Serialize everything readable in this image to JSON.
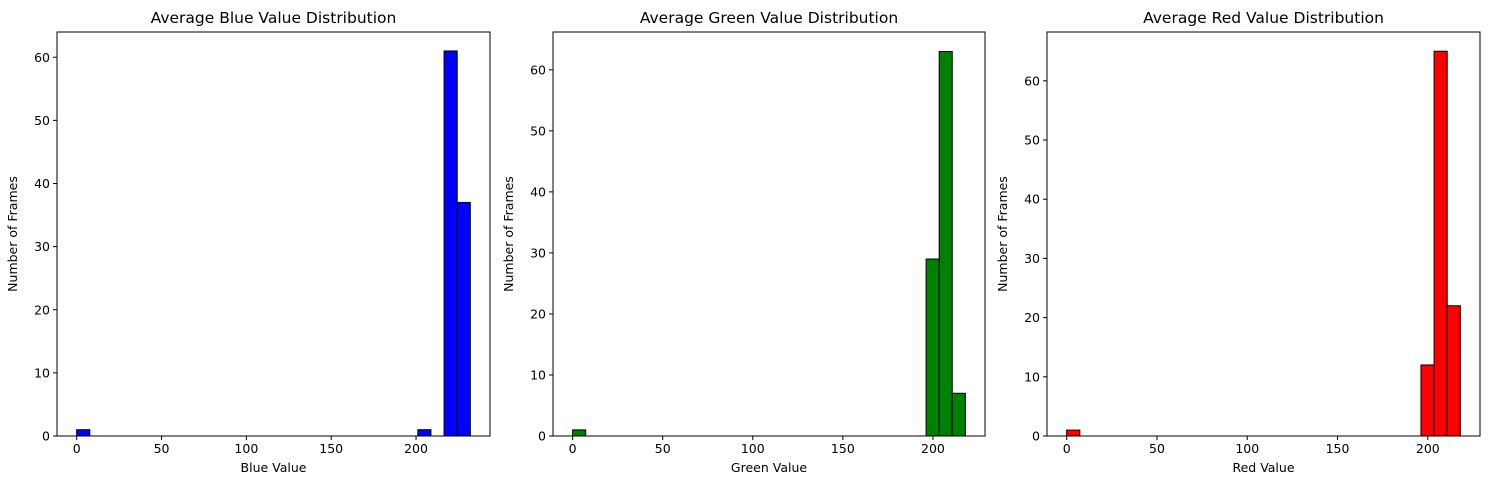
{
  "chart_data": [
    {
      "type": "bar",
      "title": "Average Blue Value Distribution",
      "xlabel": "Blue Value",
      "ylabel": "Number of Frames",
      "color": "#0000ff",
      "edge_color": "#000000",
      "xlim": [
        -11.6,
        243.6
      ],
      "ylim": [
        0,
        64
      ],
      "xticks": [
        0,
        50,
        100,
        150,
        200
      ],
      "yticks": [
        0,
        10,
        20,
        30,
        40,
        50,
        60
      ],
      "bins": [
        {
          "x0": 0,
          "x1": 7.73,
          "count": 1
        },
        {
          "x0": 7.73,
          "x1": 15.47,
          "count": 0
        },
        {
          "x0": 15.47,
          "x1": 23.2,
          "count": 0
        },
        {
          "x0": 23.2,
          "x1": 30.93,
          "count": 0
        },
        {
          "x0": 30.93,
          "x1": 38.67,
          "count": 0
        },
        {
          "x0": 38.67,
          "x1": 46.4,
          "count": 0
        },
        {
          "x0": 46.4,
          "x1": 54.13,
          "count": 0
        },
        {
          "x0": 54.13,
          "x1": 61.87,
          "count": 0
        },
        {
          "x0": 61.87,
          "x1": 69.6,
          "count": 0
        },
        {
          "x0": 69.6,
          "x1": 77.33,
          "count": 0
        },
        {
          "x0": 77.33,
          "x1": 85.07,
          "count": 0
        },
        {
          "x0": 85.07,
          "x1": 92.8,
          "count": 0
        },
        {
          "x0": 92.8,
          "x1": 100.53,
          "count": 0
        },
        {
          "x0": 100.53,
          "x1": 108.27,
          "count": 0
        },
        {
          "x0": 108.27,
          "x1": 116,
          "count": 0
        },
        {
          "x0": 116,
          "x1": 123.73,
          "count": 0
        },
        {
          "x0": 123.73,
          "x1": 131.47,
          "count": 0
        },
        {
          "x0": 131.47,
          "x1": 139.2,
          "count": 0
        },
        {
          "x0": 139.2,
          "x1": 146.93,
          "count": 0
        },
        {
          "x0": 146.93,
          "x1": 154.67,
          "count": 0
        },
        {
          "x0": 154.67,
          "x1": 162.4,
          "count": 0
        },
        {
          "x0": 162.4,
          "x1": 170.13,
          "count": 0
        },
        {
          "x0": 170.13,
          "x1": 177.87,
          "count": 0
        },
        {
          "x0": 177.87,
          "x1": 185.6,
          "count": 0
        },
        {
          "x0": 185.6,
          "x1": 193.33,
          "count": 0
        },
        {
          "x0": 193.33,
          "x1": 201.07,
          "count": 0
        },
        {
          "x0": 201.07,
          "x1": 208.8,
          "count": 1
        },
        {
          "x0": 208.8,
          "x1": 216.53,
          "count": 0
        },
        {
          "x0": 216.53,
          "x1": 224.27,
          "count": 61
        },
        {
          "x0": 224.27,
          "x1": 232,
          "count": 37
        }
      ]
    },
    {
      "type": "bar",
      "title": "Average Green Value Distribution",
      "xlabel": "Green Value",
      "ylabel": "Number of Frames",
      "color": "#008000",
      "edge_color": "#000000",
      "xlim": [
        -10.9,
        228.9
      ],
      "ylim": [
        0,
        66.2
      ],
      "xticks": [
        0,
        50,
        100,
        150,
        200
      ],
      "yticks": [
        0,
        10,
        20,
        30,
        40,
        50,
        60
      ],
      "bins": [
        {
          "x0": 0,
          "x1": 7.27,
          "count": 1
        },
        {
          "x0": 7.27,
          "x1": 14.53,
          "count": 0
        },
        {
          "x0": 14.53,
          "x1": 21.8,
          "count": 0
        },
        {
          "x0": 21.8,
          "x1": 29.07,
          "count": 0
        },
        {
          "x0": 29.07,
          "x1": 36.33,
          "count": 0
        },
        {
          "x0": 36.33,
          "x1": 43.6,
          "count": 0
        },
        {
          "x0": 43.6,
          "x1": 50.87,
          "count": 0
        },
        {
          "x0": 50.87,
          "x1": 58.13,
          "count": 0
        },
        {
          "x0": 58.13,
          "x1": 65.4,
          "count": 0
        },
        {
          "x0": 65.4,
          "x1": 72.67,
          "count": 0
        },
        {
          "x0": 72.67,
          "x1": 79.93,
          "count": 0
        },
        {
          "x0": 79.93,
          "x1": 87.2,
          "count": 0
        },
        {
          "x0": 87.2,
          "x1": 94.47,
          "count": 0
        },
        {
          "x0": 94.47,
          "x1": 101.73,
          "count": 0
        },
        {
          "x0": 101.73,
          "x1": 109,
          "count": 0
        },
        {
          "x0": 109,
          "x1": 116.27,
          "count": 0
        },
        {
          "x0": 116.27,
          "x1": 123.53,
          "count": 0
        },
        {
          "x0": 123.53,
          "x1": 130.8,
          "count": 0
        },
        {
          "x0": 130.8,
          "x1": 138.07,
          "count": 0
        },
        {
          "x0": 138.07,
          "x1": 145.33,
          "count": 0
        },
        {
          "x0": 145.33,
          "x1": 152.6,
          "count": 0
        },
        {
          "x0": 152.6,
          "x1": 159.87,
          "count": 0
        },
        {
          "x0": 159.87,
          "x1": 167.13,
          "count": 0
        },
        {
          "x0": 167.13,
          "x1": 174.4,
          "count": 0
        },
        {
          "x0": 174.4,
          "x1": 181.67,
          "count": 0
        },
        {
          "x0": 181.67,
          "x1": 188.93,
          "count": 0
        },
        {
          "x0": 188.93,
          "x1": 196.2,
          "count": 0
        },
        {
          "x0": 196.2,
          "x1": 203.47,
          "count": 29
        },
        {
          "x0": 203.47,
          "x1": 210.73,
          "count": 63
        },
        {
          "x0": 210.73,
          "x1": 218,
          "count": 7
        }
      ]
    },
    {
      "type": "bar",
      "title": "Average Red Value Distribution",
      "xlabel": "Red Value",
      "ylabel": "Number of Frames",
      "color": "#ff0000",
      "edge_color": "#000000",
      "xlim": [
        -10.9,
        228.9
      ],
      "ylim": [
        0,
        68.25
      ],
      "xticks": [
        0,
        50,
        100,
        150,
        200
      ],
      "yticks": [
        0,
        10,
        20,
        30,
        40,
        50,
        60
      ],
      "bins": [
        {
          "x0": 0,
          "x1": 7.27,
          "count": 1
        },
        {
          "x0": 7.27,
          "x1": 14.53,
          "count": 0
        },
        {
          "x0": 14.53,
          "x1": 21.8,
          "count": 0
        },
        {
          "x0": 21.8,
          "x1": 29.07,
          "count": 0
        },
        {
          "x0": 29.07,
          "x1": 36.33,
          "count": 0
        },
        {
          "x0": 36.33,
          "x1": 43.6,
          "count": 0
        },
        {
          "x0": 43.6,
          "x1": 50.87,
          "count": 0
        },
        {
          "x0": 50.87,
          "x1": 58.13,
          "count": 0
        },
        {
          "x0": 58.13,
          "x1": 65.4,
          "count": 0
        },
        {
          "x0": 65.4,
          "x1": 72.67,
          "count": 0
        },
        {
          "x0": 72.67,
          "x1": 79.93,
          "count": 0
        },
        {
          "x0": 79.93,
          "x1": 87.2,
          "count": 0
        },
        {
          "x0": 87.2,
          "x1": 94.47,
          "count": 0
        },
        {
          "x0": 94.47,
          "x1": 101.73,
          "count": 0
        },
        {
          "x0": 101.73,
          "x1": 109,
          "count": 0
        },
        {
          "x0": 109,
          "x1": 116.27,
          "count": 0
        },
        {
          "x0": 116.27,
          "x1": 123.53,
          "count": 0
        },
        {
          "x0": 123.53,
          "x1": 130.8,
          "count": 0
        },
        {
          "x0": 130.8,
          "x1": 138.07,
          "count": 0
        },
        {
          "x0": 138.07,
          "x1": 145.33,
          "count": 0
        },
        {
          "x0": 145.33,
          "x1": 152.6,
          "count": 0
        },
        {
          "x0": 152.6,
          "x1": 159.87,
          "count": 0
        },
        {
          "x0": 159.87,
          "x1": 167.13,
          "count": 0
        },
        {
          "x0": 167.13,
          "x1": 174.4,
          "count": 0
        },
        {
          "x0": 174.4,
          "x1": 181.67,
          "count": 0
        },
        {
          "x0": 181.67,
          "x1": 188.93,
          "count": 0
        },
        {
          "x0": 188.93,
          "x1": 196.2,
          "count": 0
        },
        {
          "x0": 196.2,
          "x1": 203.47,
          "count": 12
        },
        {
          "x0": 203.47,
          "x1": 210.73,
          "count": 65
        },
        {
          "x0": 210.73,
          "x1": 218,
          "count": 22
        }
      ]
    }
  ]
}
